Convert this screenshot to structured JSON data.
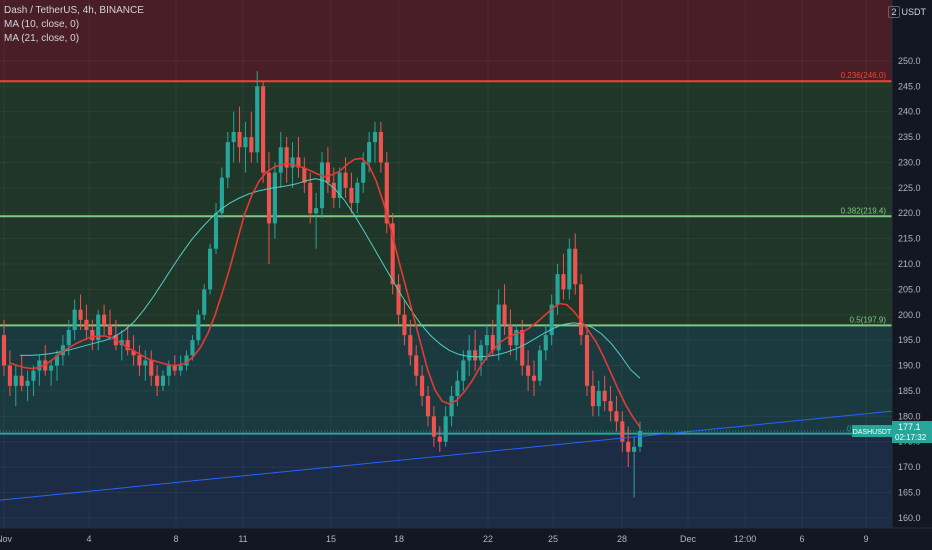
{
  "header": {
    "symbol_line": "Dash / TetherUS, 4h, BINANCE",
    "ma_lines": [
      "MA (10, close, 0)",
      "MA (21, close, 0)"
    ],
    "unit_badge": "2",
    "unit": "USDT"
  },
  "colors": {
    "background": "#131722",
    "zone_top": "#4a1e26",
    "zone_mid_upper": "#203628",
    "zone_mid_lower": "#1b3a3f",
    "zone_bottom": "#1c2c44",
    "fib_red": "#f44336",
    "fib_green": "#81c784",
    "fib_cyan": "#26a69a",
    "trendline": "#2962ff",
    "ma10": "#e53935",
    "ma21": "#4dd0c4",
    "candle_up": "#26a69a",
    "candle_down": "#ef5350",
    "axis_text": "#b2b5be"
  },
  "chart_data": {
    "type": "candlestick",
    "y_axis": {
      "min": 158,
      "max": 262,
      "ticks": [
        160.0,
        165.0,
        170.0,
        175.0,
        180.0,
        185.0,
        190.0,
        195.0,
        200.0,
        205.0,
        210.0,
        215.0,
        220.0,
        225.0,
        230.0,
        235.0,
        240.0,
        245.0,
        250.0
      ]
    },
    "x_axis": {
      "labels": [
        "Nov",
        "4",
        "8",
        "11",
        "15",
        "18",
        "22",
        "25",
        "28",
        "Dec",
        "12:00",
        "6",
        "9"
      ]
    },
    "fib_levels": [
      {
        "label": "0.236(246.0)",
        "value": 246.0,
        "color": "#f44336"
      },
      {
        "label": "0.382(219.4)",
        "value": 219.4,
        "color": "#81c784"
      },
      {
        "label": "0.5(197.9)",
        "value": 197.9,
        "color": "#81c784"
      },
      {
        "label": "0",
        "value": 176.6,
        "color": "#26a69a"
      }
    ],
    "trendline": {
      "start_value": 163.5,
      "end_value": 181.0
    },
    "last_price": {
      "label": "DASHUSDT",
      "value": "177.1",
      "countdown": "02:17:32"
    },
    "candles": [
      [
        196,
        199,
        188,
        190
      ],
      [
        190,
        193,
        184,
        186
      ],
      [
        186,
        190,
        182,
        188
      ],
      [
        188,
        192,
        185,
        186
      ],
      [
        186,
        189,
        183,
        187
      ],
      [
        187,
        190,
        184,
        189
      ],
      [
        189,
        192,
        186,
        191
      ],
      [
        191,
        194,
        188,
        189
      ],
      [
        189,
        191,
        186,
        190
      ],
      [
        190,
        193,
        187,
        192
      ],
      [
        192,
        196,
        190,
        194
      ],
      [
        194,
        199,
        192,
        197
      ],
      [
        197,
        203,
        195,
        201
      ],
      [
        201,
        204,
        197,
        199
      ],
      [
        199,
        202,
        195,
        197
      ],
      [
        197,
        199,
        193,
        195
      ],
      [
        195,
        201,
        193,
        200
      ],
      [
        200,
        202,
        196,
        198
      ],
      [
        198,
        201,
        195,
        196
      ],
      [
        196,
        199,
        193,
        194
      ],
      [
        194,
        197,
        191,
        195
      ],
      [
        195,
        198,
        192,
        193
      ],
      [
        193,
        196,
        190,
        192
      ],
      [
        192,
        194,
        188,
        190
      ],
      [
        190,
        193,
        187,
        191
      ],
      [
        191,
        193,
        186,
        188
      ],
      [
        188,
        190,
        184,
        186
      ],
      [
        186,
        189,
        185,
        188
      ],
      [
        188,
        191,
        186,
        190
      ],
      [
        190,
        192,
        188,
        189
      ],
      [
        189,
        192,
        188,
        190
      ],
      [
        190,
        193,
        189,
        192
      ],
      [
        192,
        196,
        191,
        195
      ],
      [
        195,
        201,
        194,
        200
      ],
      [
        200,
        206,
        199,
        205
      ],
      [
        205,
        214,
        204,
        213
      ],
      [
        213,
        222,
        212,
        220
      ],
      [
        220,
        229,
        219,
        227
      ],
      [
        227,
        236,
        225,
        234
      ],
      [
        234,
        240,
        230,
        236
      ],
      [
        236,
        241,
        230,
        233
      ],
      [
        233,
        238,
        228,
        235
      ],
      [
        235,
        240,
        230,
        232
      ],
      [
        232,
        248,
        230,
        245
      ],
      [
        245,
        246,
        226,
        228
      ],
      [
        228,
        232,
        210,
        218
      ],
      [
        218,
        230,
        215,
        228
      ],
      [
        228,
        236,
        225,
        233
      ],
      [
        233,
        235,
        226,
        229
      ],
      [
        229,
        234,
        225,
        231
      ],
      [
        231,
        235,
        227,
        229
      ],
      [
        229,
        231,
        224,
        226
      ],
      [
        226,
        228,
        218,
        220
      ],
      [
        220,
        224,
        213,
        221
      ],
      [
        221,
        232,
        219,
        230
      ],
      [
        230,
        233,
        224,
        226
      ],
      [
        226,
        229,
        221,
        223
      ],
      [
        223,
        229,
        221,
        228
      ],
      [
        228,
        231,
        223,
        225
      ],
      [
        225,
        228,
        220,
        222
      ],
      [
        222,
        227,
        220,
        226
      ],
      [
        226,
        232,
        224,
        230
      ],
      [
        230,
        236,
        228,
        234
      ],
      [
        234,
        238,
        230,
        236
      ],
      [
        236,
        238,
        228,
        230
      ],
      [
        230,
        232,
        216,
        218
      ],
      [
        218,
        220,
        204,
        206
      ],
      [
        206,
        208,
        198,
        200
      ],
      [
        200,
        203,
        194,
        196
      ],
      [
        196,
        199,
        190,
        192
      ],
      [
        192,
        194,
        186,
        188
      ],
      [
        188,
        190,
        182,
        184
      ],
      [
        184,
        186,
        178,
        180
      ],
      [
        180,
        182,
        174,
        176
      ],
      [
        176,
        178,
        173,
        175
      ],
      [
        175,
        182,
        174,
        180
      ],
      [
        180,
        186,
        178,
        184
      ],
      [
        184,
        189,
        182,
        187
      ],
      [
        187,
        193,
        185,
        191
      ],
      [
        191,
        196,
        188,
        193
      ],
      [
        193,
        197,
        189,
        191
      ],
      [
        191,
        195,
        188,
        194
      ],
      [
        194,
        198,
        191,
        196
      ],
      [
        196,
        199,
        192,
        193
      ],
      [
        193,
        205,
        191,
        202
      ],
      [
        202,
        206,
        196,
        198
      ],
      [
        198,
        201,
        192,
        194
      ],
      [
        194,
        198,
        191,
        197
      ],
      [
        197,
        199,
        188,
        190
      ],
      [
        190,
        193,
        185,
        188
      ],
      [
        188,
        191,
        184,
        187
      ],
      [
        187,
        194,
        186,
        193
      ],
      [
        193,
        198,
        191,
        196
      ],
      [
        196,
        204,
        194,
        202
      ],
      [
        202,
        210,
        200,
        208
      ],
      [
        208,
        212,
        203,
        205
      ],
      [
        205,
        215,
        203,
        213
      ],
      [
        213,
        216,
        204,
        206
      ],
      [
        206,
        208,
        194,
        196
      ],
      [
        196,
        198,
        184,
        186
      ],
      [
        186,
        189,
        180,
        182
      ],
      [
        182,
        187,
        180,
        185
      ],
      [
        185,
        188,
        181,
        183
      ],
      [
        183,
        186,
        179,
        181
      ],
      [
        181,
        184,
        177,
        179
      ],
      [
        179,
        181,
        173,
        175
      ],
      [
        175,
        178,
        170,
        173
      ],
      [
        173,
        176,
        164,
        174
      ],
      [
        174,
        179,
        173,
        177.1
      ]
    ],
    "ma10": [
      190.5,
      190.0,
      189.6,
      189.4,
      189.6,
      190.3,
      191.4,
      192.6,
      193.5,
      194.3,
      195.0,
      195.6,
      195.8,
      195.8,
      195.4,
      194.6,
      193.6,
      192.8,
      192.0,
      191.2,
      190.8,
      190.4,
      190.0,
      190.1,
      190.5,
      191.7,
      193.6,
      196.3,
      200.0,
      204.4,
      209.2,
      214.5,
      219.7,
      223.5,
      226.3,
      228.1,
      229.0,
      229.6,
      229.7,
      229.4,
      229.0,
      228.4,
      227.7,
      227.2,
      227.6,
      228.3,
      229.6,
      230.6,
      230.8,
      229.4,
      226.3,
      222.0,
      216.8,
      211.0,
      205.6,
      200.2,
      194.7,
      189.2,
      185.2,
      183.0,
      182.4,
      183.2,
      184.8,
      186.8,
      189.3,
      191.5,
      193.2,
      194.7,
      195.6,
      196.3,
      196.6,
      197.5,
      198.6,
      199.9,
      201.2,
      202.2,
      202.0,
      200.6,
      198.7,
      196.8,
      194.7,
      191.8,
      188.6,
      185.4,
      182.4,
      179.9,
      177.9
    ],
    "ma21": [
      192.0,
      192.0,
      192.1,
      192.3,
      192.6,
      193.0,
      193.5,
      194.0,
      194.5,
      195.0,
      195.8,
      197.0,
      198.7,
      201.0,
      203.6,
      206.5,
      209.4,
      212.2,
      214.8,
      217.0,
      219.0,
      220.7,
      222.0,
      223.0,
      223.8,
      224.4,
      224.8,
      225.1,
      225.4,
      225.8,
      226.4,
      226.8,
      226.3,
      224.8,
      222.6,
      219.8,
      216.7,
      213.5,
      210.2,
      207.0,
      203.8,
      200.9,
      198.2,
      196.0,
      194.3,
      193.0,
      192.2,
      191.8,
      191.7,
      191.8,
      192.1,
      192.6,
      193.3,
      194.2,
      195.3,
      196.4,
      197.4,
      198.1,
      198.4,
      198.2,
      197.5,
      196.2,
      194.3,
      191.9,
      189.2,
      187.5
    ]
  }
}
